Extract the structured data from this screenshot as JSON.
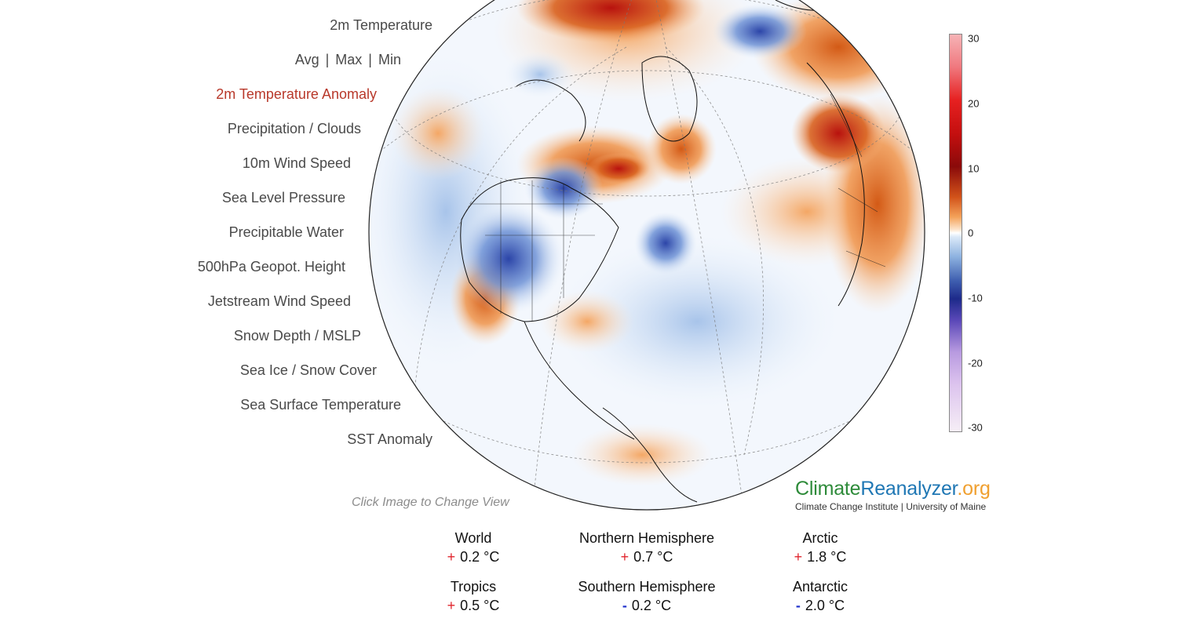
{
  "menu": {
    "items": [
      {
        "label": "2m Temperature"
      },
      {
        "label": "Avg",
        "sub": [
          "Avg",
          "Max",
          "Min"
        ]
      },
      {
        "label": "2m Temperature Anomaly",
        "active": true
      },
      {
        "label": "Precipitation / Clouds"
      },
      {
        "label": "10m Wind Speed"
      },
      {
        "label": "Sea Level Pressure"
      },
      {
        "label": "Precipitable Water"
      },
      {
        "label": "500hPa Geopot. Height"
      },
      {
        "label": "Jetstream Wind Speed"
      },
      {
        "label": "Snow Depth / MSLP"
      },
      {
        "label": "Sea Ice / Snow Cover"
      },
      {
        "label": "Sea Surface Temperature"
      },
      {
        "label": "SST Anomaly"
      }
    ],
    "stat_avg": "Avg",
    "stat_max": "Max",
    "stat_min": "Min",
    "separator": "|",
    "active_color": "#b8382a"
  },
  "map": {
    "click_hint": "Click Image to Change View"
  },
  "colorbar": {
    "ticks": [
      "30",
      "20",
      "10",
      "0",
      "-10",
      "-20",
      "-30"
    ],
    "colors": {
      "warm": "#c40f0f",
      "neutral": "#ffffff",
      "cool": "#1d2a8a"
    }
  },
  "brand": {
    "climate": "Climate",
    "reanalyzer": "Reanalyzer",
    "org": ".org",
    "climate_color": "#2e8b3a",
    "reanalyzer_color": "#1f77b4",
    "org_color": "#f0a030",
    "subtitle": "Climate Change Institute | University of Maine"
  },
  "stats": {
    "world": {
      "name": "World",
      "sign": "+",
      "value": "0.2 °C"
    },
    "nh": {
      "name": "Northern Hemisphere",
      "sign": "+",
      "value": "0.7 °C"
    },
    "arctic": {
      "name": "Arctic",
      "sign": "+",
      "value": "1.8 °C"
    },
    "tropics": {
      "name": "Tropics",
      "sign": "+",
      "value": "0.5 °C"
    },
    "sh": {
      "name": "Southern Hemisphere",
      "sign": "-",
      "value": "0.2 °C"
    },
    "antarctic": {
      "name": "Antarctic",
      "sign": "-",
      "value": "2.0 °C"
    }
  }
}
